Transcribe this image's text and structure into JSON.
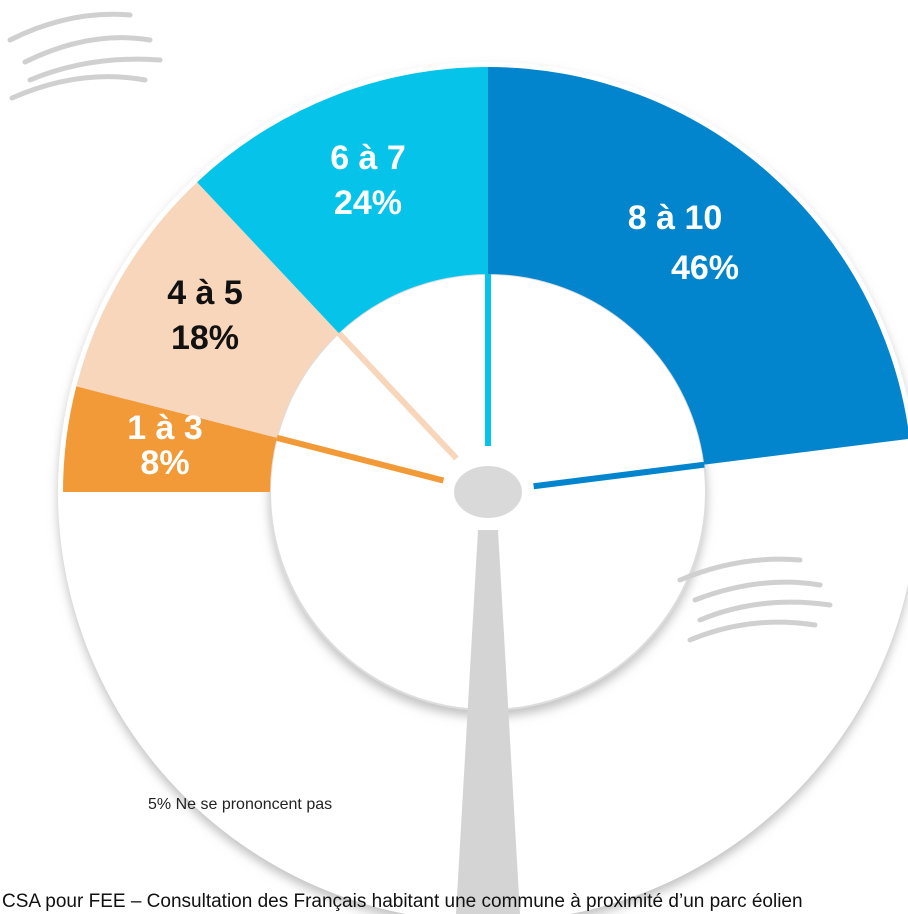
{
  "chart_data": {
    "type": "half-donut",
    "categories": [
      "1 à 3",
      "4 à 5",
      "6 à 7",
      "8 à 10"
    ],
    "values": [
      8,
      18,
      24,
      46
    ],
    "value_labels": [
      "8%",
      "18%",
      "24%",
      "46%"
    ],
    "colors": [
      "#f29a38",
      "#f8d6bb",
      "#05c3e9",
      "#0285cc"
    ],
    "label_colors": [
      "#ffffff",
      "#111111",
      "#ffffff",
      "#ffffff"
    ],
    "note": "5% Ne se prononcent pas",
    "source": "CSA pour FEE – Consultation des Français habitant une commune à proximité d’un parc éolien"
  }
}
